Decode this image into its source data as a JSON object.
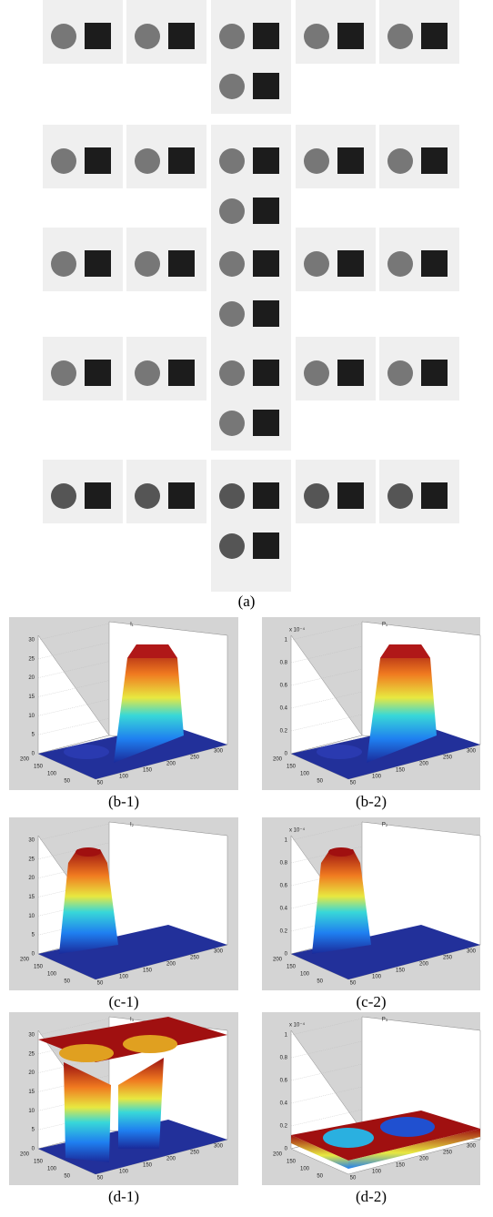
{
  "panel_a": {
    "caption": "(a)"
  },
  "plots": [
    {
      "caption": "(b-1)",
      "title": "I₁",
      "z_ticks": [
        "30",
        "25",
        "20",
        "15",
        "10",
        "5",
        "0"
      ],
      "y_ticks": [
        "200",
        "150",
        "100",
        "50"
      ],
      "x_ticks": [
        "50",
        "100",
        "150",
        "200",
        "250",
        "300"
      ]
    },
    {
      "caption": "(b-2)",
      "title": "P₁",
      "scale_note": "x 10⁻⁴",
      "z_ticks": [
        "1",
        "0.8",
        "0.6",
        "0.4",
        "0.2",
        "0"
      ],
      "y_ticks": [
        "200",
        "150",
        "100",
        "50"
      ],
      "x_ticks": [
        "50",
        "100",
        "150",
        "200",
        "250",
        "300"
      ]
    },
    {
      "caption": "(c-1)",
      "title": "I₂",
      "z_ticks": [
        "30",
        "25",
        "20",
        "15",
        "10",
        "5",
        "0"
      ],
      "y_ticks": [
        "200",
        "150",
        "100",
        "50"
      ],
      "x_ticks": [
        "50",
        "100",
        "150",
        "200",
        "250",
        "300"
      ]
    },
    {
      "caption": "(c-2)",
      "title": "P₂",
      "scale_note": "x 10⁻⁴",
      "z_ticks": [
        "1",
        "0.8",
        "0.6",
        "0.4",
        "0.2",
        "0"
      ],
      "y_ticks": [
        "200",
        "150",
        "100",
        "50"
      ],
      "x_ticks": [
        "50",
        "100",
        "150",
        "200",
        "250",
        "300"
      ]
    },
    {
      "caption": "(d-1)",
      "title": "I₃",
      "z_ticks": [
        "30",
        "25",
        "20",
        "15",
        "10",
        "5",
        "0"
      ],
      "y_ticks": [
        "200",
        "150",
        "100",
        "50"
      ],
      "x_ticks": [
        "50",
        "100",
        "150",
        "200",
        "250",
        "300"
      ]
    },
    {
      "caption": "(d-2)",
      "title": "P₃",
      "scale_note": "x 10⁻⁴",
      "z_ticks": [
        "1",
        "0.8",
        "0.6",
        "0.4",
        "0.2",
        "0"
      ],
      "y_ticks": [
        "200",
        "150",
        "100",
        "50"
      ],
      "x_ticks": [
        "50",
        "100",
        "150",
        "200",
        "250",
        "300"
      ]
    }
  ]
}
